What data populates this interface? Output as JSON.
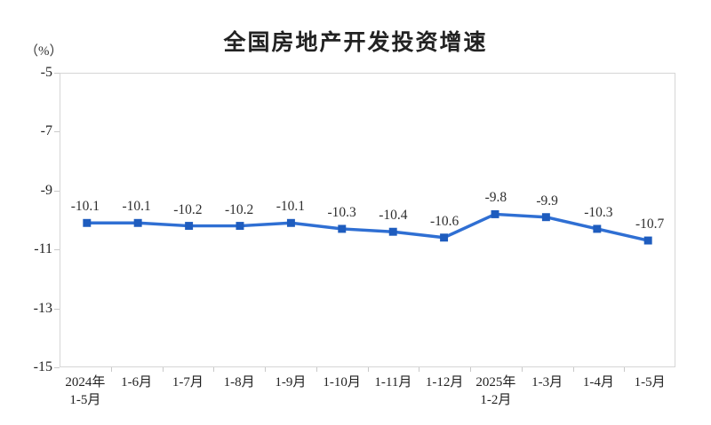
{
  "chart": {
    "title": "全国房地产开发投资增速",
    "unit_label": "（%）"
  },
  "chart_data": {
    "type": "line",
    "title": "全国房地产开发投资增速",
    "ylabel": "（%）",
    "xlabel": "",
    "categories": [
      "2024年\n1-5月",
      "1-6月",
      "1-7月",
      "1-8月",
      "1-9月",
      "1-10月",
      "1-11月",
      "1-12月",
      "2025年\n1-2月",
      "1-3月",
      "1-4月",
      "1-5月"
    ],
    "values": [
      -10.1,
      -10.1,
      -10.2,
      -10.2,
      -10.1,
      -10.3,
      -10.4,
      -10.6,
      -9.8,
      -9.9,
      -10.3,
      -10.7
    ],
    "data_labels": [
      "-10.1",
      "-10.1",
      "-10.2",
      "-10.2",
      "-10.1",
      "-10.3",
      "-10.4",
      "-10.6",
      "-9.8",
      "-9.9",
      "-10.3",
      "-10.7"
    ],
    "ylim": [
      -15,
      -5
    ],
    "yticks": [
      -5,
      -7,
      -9,
      -11,
      -13,
      -15
    ],
    "grid": false,
    "legend_position": "none",
    "line_color": "#2f6fd3",
    "marker_color": "#1e5cbe",
    "border_color": "#d6d6d6"
  }
}
